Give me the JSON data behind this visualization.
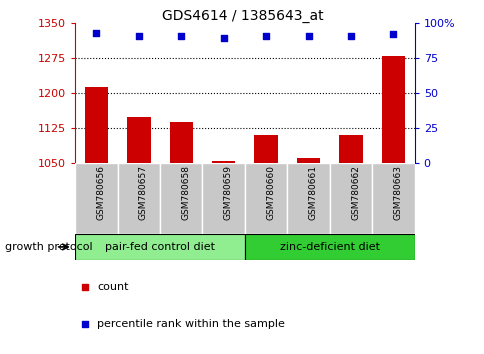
{
  "title": "GDS4614 / 1385643_at",
  "samples": [
    "GSM780656",
    "GSM780657",
    "GSM780658",
    "GSM780659",
    "GSM780660",
    "GSM780661",
    "GSM780662",
    "GSM780663"
  ],
  "bar_values": [
    1213,
    1148,
    1138,
    1055,
    1110,
    1060,
    1110,
    1280
  ],
  "percentile_values": [
    93,
    91,
    91,
    89,
    91,
    91,
    91,
    92
  ],
  "ylim_left": [
    1050,
    1350
  ],
  "ylim_right": [
    0,
    100
  ],
  "yticks_left": [
    1050,
    1125,
    1200,
    1275,
    1350
  ],
  "yticks_right": [
    0,
    25,
    50,
    75,
    100
  ],
  "bar_color": "#cc0000",
  "dot_color": "#0000cc",
  "bar_bottom": 1050,
  "group1_label": "pair-fed control diet",
  "group2_label": "zinc-deficient diet",
  "group_label": "growth protocol",
  "legend_count_label": "count",
  "legend_pct_label": "percentile rank within the sample",
  "group1_color": "#90EE90",
  "group2_color": "#32CD32",
  "xticklabel_bg": "#c8c8c8",
  "left_axis_color": "#cc0000",
  "right_axis_color": "#0000cc",
  "grid_yticks": [
    1125,
    1200,
    1275
  ]
}
